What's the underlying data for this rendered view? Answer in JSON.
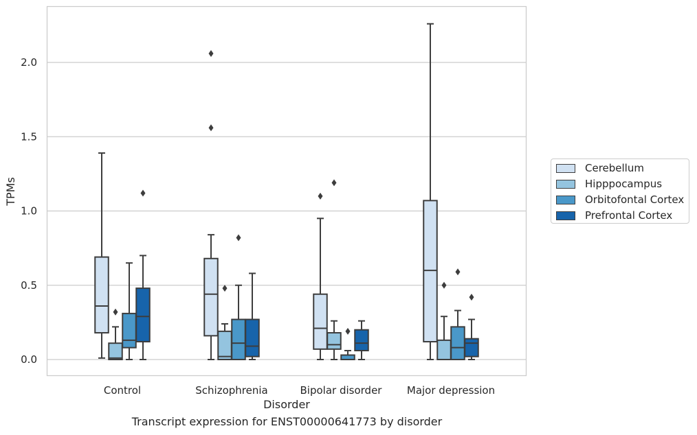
{
  "chart_data": {
    "type": "box",
    "title": "",
    "caption": "Transcript expression for ENST00000641773 by disorder",
    "xlabel": "Disorder",
    "ylabel": "TPMs",
    "ylim": [
      -0.11,
      2.38
    ],
    "yticks": [
      "0.0",
      "0.5",
      "1.0",
      "1.5",
      "2.0"
    ],
    "ytick_values": [
      0.0,
      0.5,
      1.0,
      1.5,
      2.0
    ],
    "grid": "horizontal",
    "legend_position": "right",
    "categories": [
      "Control",
      "Schizophrenia",
      "Bipolar disorder",
      "Major depression"
    ],
    "series": [
      {
        "name": "Cerebellum",
        "color": "#d0e1f2",
        "boxes": [
          {
            "min": 0.01,
            "q1": 0.18,
            "median": 0.36,
            "q3": 0.69,
            "max": 1.39,
            "outliers": []
          },
          {
            "min": 0.0,
            "q1": 0.16,
            "median": 0.44,
            "q3": 0.68,
            "max": 0.84,
            "outliers": [
              1.56,
              2.06
            ]
          },
          {
            "min": 0.0,
            "q1": 0.07,
            "median": 0.21,
            "q3": 0.44,
            "max": 0.95,
            "outliers": [
              1.1
            ]
          },
          {
            "min": 0.0,
            "q1": 0.12,
            "median": 0.6,
            "q3": 1.07,
            "max": 2.26,
            "outliers": []
          }
        ]
      },
      {
        "name": "Hipppocampus",
        "color": "#94c4df",
        "boxes": [
          {
            "min": 0.0,
            "q1": 0.0,
            "median": 0.01,
            "q3": 0.11,
            "max": 0.22,
            "outliers": [
              0.32
            ]
          },
          {
            "min": 0.0,
            "q1": 0.0,
            "median": 0.02,
            "q3": 0.19,
            "max": 0.24,
            "outliers": [
              0.48
            ]
          },
          {
            "min": 0.0,
            "q1": 0.07,
            "median": 0.1,
            "q3": 0.18,
            "max": 0.26,
            "outliers": [
              1.19
            ]
          },
          {
            "min": 0.0,
            "q1": 0.0,
            "median": 0.0,
            "q3": 0.13,
            "max": 0.29,
            "outliers": [
              0.5
            ]
          }
        ]
      },
      {
        "name": "Orbitofontal Cortex",
        "color": "#4a98c9",
        "boxes": [
          {
            "min": 0.0,
            "q1": 0.08,
            "median": 0.13,
            "q3": 0.31,
            "max": 0.65,
            "outliers": []
          },
          {
            "min": 0.0,
            "q1": 0.0,
            "median": 0.11,
            "q3": 0.27,
            "max": 0.5,
            "outliers": [
              0.82
            ]
          },
          {
            "min": 0.0,
            "q1": 0.0,
            "median": 0.0,
            "q3": 0.03,
            "max": 0.06,
            "outliers": [
              0.19
            ]
          },
          {
            "min": 0.0,
            "q1": 0.0,
            "median": 0.08,
            "q3": 0.22,
            "max": 0.33,
            "outliers": [
              0.59
            ]
          }
        ]
      },
      {
        "name": "Prefrontal Cortex",
        "color": "#1764ab",
        "boxes": [
          {
            "min": 0.0,
            "q1": 0.12,
            "median": 0.29,
            "q3": 0.48,
            "max": 0.7,
            "outliers": [
              1.12
            ]
          },
          {
            "min": 0.0,
            "q1": 0.02,
            "median": 0.09,
            "q3": 0.27,
            "max": 0.58,
            "outliers": []
          },
          {
            "min": 0.0,
            "q1": 0.06,
            "median": 0.11,
            "q3": 0.2,
            "max": 0.26,
            "outliers": []
          },
          {
            "min": 0.0,
            "q1": 0.02,
            "median": 0.11,
            "q3": 0.14,
            "max": 0.27,
            "outliers": [
              0.42
            ]
          }
        ]
      }
    ]
  }
}
